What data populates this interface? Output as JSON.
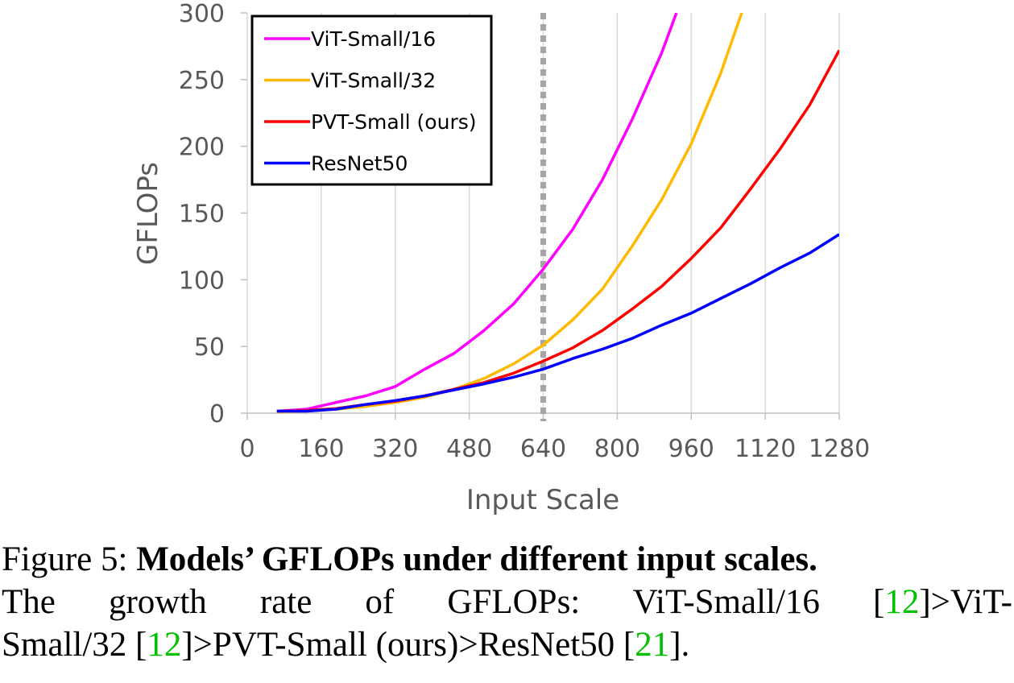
{
  "chart_data": {
    "type": "line",
    "xlabel": "Input Scale",
    "ylabel": "GFLOPs",
    "xlim": [
      0,
      1280
    ],
    "ylim": [
      0,
      300
    ],
    "xticks": [
      0,
      160,
      320,
      480,
      640,
      800,
      960,
      1120,
      1280
    ],
    "yticks": [
      0,
      50,
      100,
      150,
      200,
      250,
      300
    ],
    "vertical_reference_line": 640,
    "grid": "vertical",
    "legend_position": "top-left",
    "series": [
      {
        "name": "ViT-Small/16",
        "color": "#ff00ff",
        "x": [
          64,
          128,
          192,
          256,
          320,
          384,
          448,
          512,
          576,
          640,
          704,
          768,
          832,
          896,
          928
        ],
        "y": [
          1.5,
          3,
          8,
          13,
          20,
          33,
          45,
          62,
          82,
          108,
          138,
          175,
          220,
          270,
          300
        ]
      },
      {
        "name": "ViT-Small/32",
        "color": "#ffb900",
        "x": [
          64,
          128,
          192,
          256,
          320,
          384,
          448,
          512,
          576,
          640,
          704,
          768,
          832,
          896,
          960,
          1024,
          1072
        ],
        "y": [
          1,
          1.5,
          3,
          5,
          8,
          12,
          18,
          26,
          37,
          51,
          70,
          93,
          125,
          160,
          202,
          255,
          303
        ]
      },
      {
        "name": "PVT-Small (ours)",
        "color": "#ff0000",
        "x": [
          64,
          128,
          192,
          256,
          320,
          384,
          448,
          512,
          576,
          640,
          704,
          768,
          832,
          896,
          960,
          1024,
          1088,
          1152,
          1216,
          1280
        ],
        "y": [
          1.5,
          2,
          3.5,
          6.5,
          9,
          13,
          18,
          23,
          30,
          39,
          49,
          62,
          78,
          95,
          116,
          139,
          168,
          198,
          231,
          272
        ]
      },
      {
        "name": "ResNet50",
        "color": "#0000ff",
        "x": [
          64,
          128,
          192,
          256,
          320,
          384,
          448,
          512,
          576,
          640,
          704,
          768,
          832,
          896,
          960,
          1024,
          1088,
          1152,
          1216,
          1280
        ],
        "y": [
          1.5,
          1.5,
          3,
          6.5,
          9.5,
          13,
          17.5,
          22,
          27,
          33,
          41,
          48,
          56,
          66,
          75,
          86,
          97,
          109,
          120,
          134
        ]
      }
    ]
  },
  "caption": {
    "prefix": "Figure 5: ",
    "title": "Models’ GFLOPs under different input scales.",
    "line2a": "The growth rate of GFLOPs: ViT-Small/16 [",
    "cite1": "12",
    "line2b": "]>ViT-",
    "line3a": "Small/32 [",
    "cite2": "12",
    "line3b": "]>PVT-Small (ours)>ResNet50 [",
    "cite3": "21",
    "line3c": "]."
  }
}
